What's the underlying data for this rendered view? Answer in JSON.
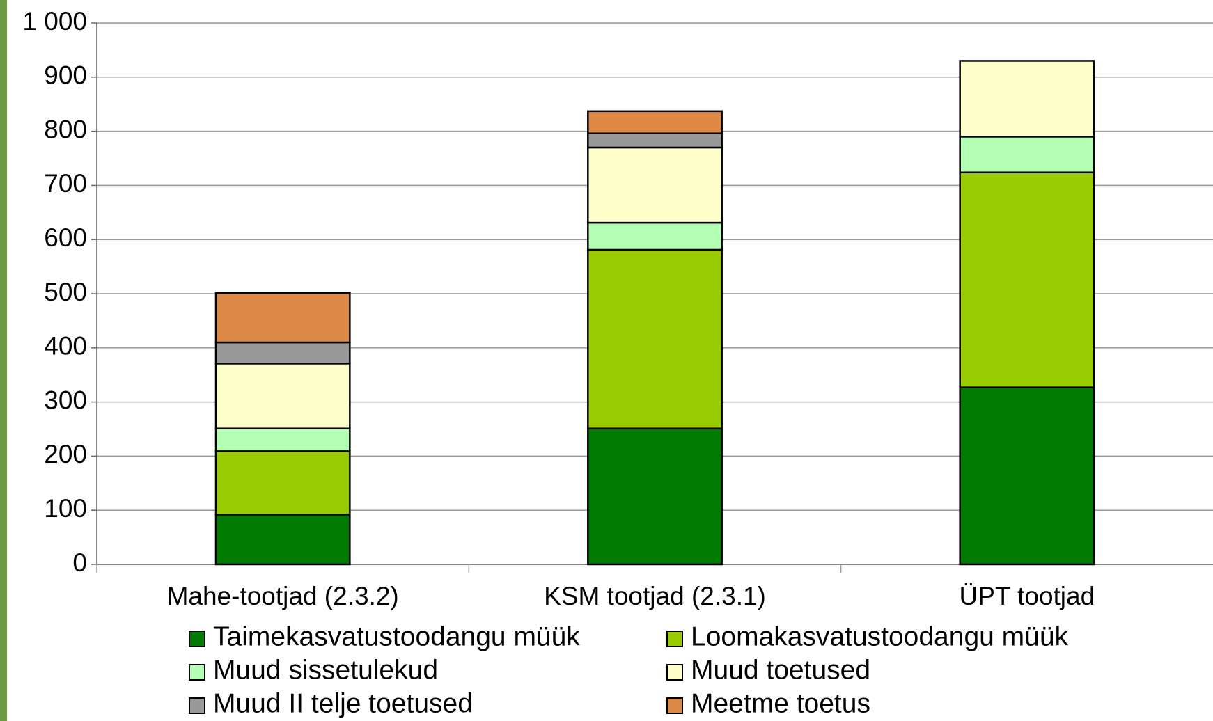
{
  "chart_data": {
    "type": "stacked-bar",
    "categories": [
      "Mahe-tootjad (2.3.2)",
      "KSM tootjad (2.3.1)",
      "ÜPT tootjad"
    ],
    "series": [
      {
        "name": "Taimekasvatustoodangu müük",
        "color": "#007a00",
        "values": [
          92,
          251,
          327
        ]
      },
      {
        "name": "Loomakasvatustoodangu müük",
        "color": "#99cc00",
        "values": [
          117,
          330,
          397
        ]
      },
      {
        "name": "Muud sissetulekud",
        "color": "#b3ffb3",
        "values": [
          42,
          50,
          66
        ]
      },
      {
        "name": "Muud toetused",
        "color": "#ffffcc",
        "values": [
          120,
          139,
          140
        ]
      },
      {
        "name": "Muud II telje toetused",
        "color": "#999999",
        "values": [
          39,
          26,
          0
        ]
      },
      {
        "name": "Meetme toetus",
        "color": "#dd8844",
        "values": [
          91,
          41,
          0
        ]
      }
    ],
    "ylim": [
      0,
      1000
    ],
    "yticks": [
      0,
      100,
      200,
      300,
      400,
      500,
      600,
      700,
      800,
      900,
      {
        "value": 1000,
        "label": "1 000"
      }
    ],
    "grid": true
  }
}
